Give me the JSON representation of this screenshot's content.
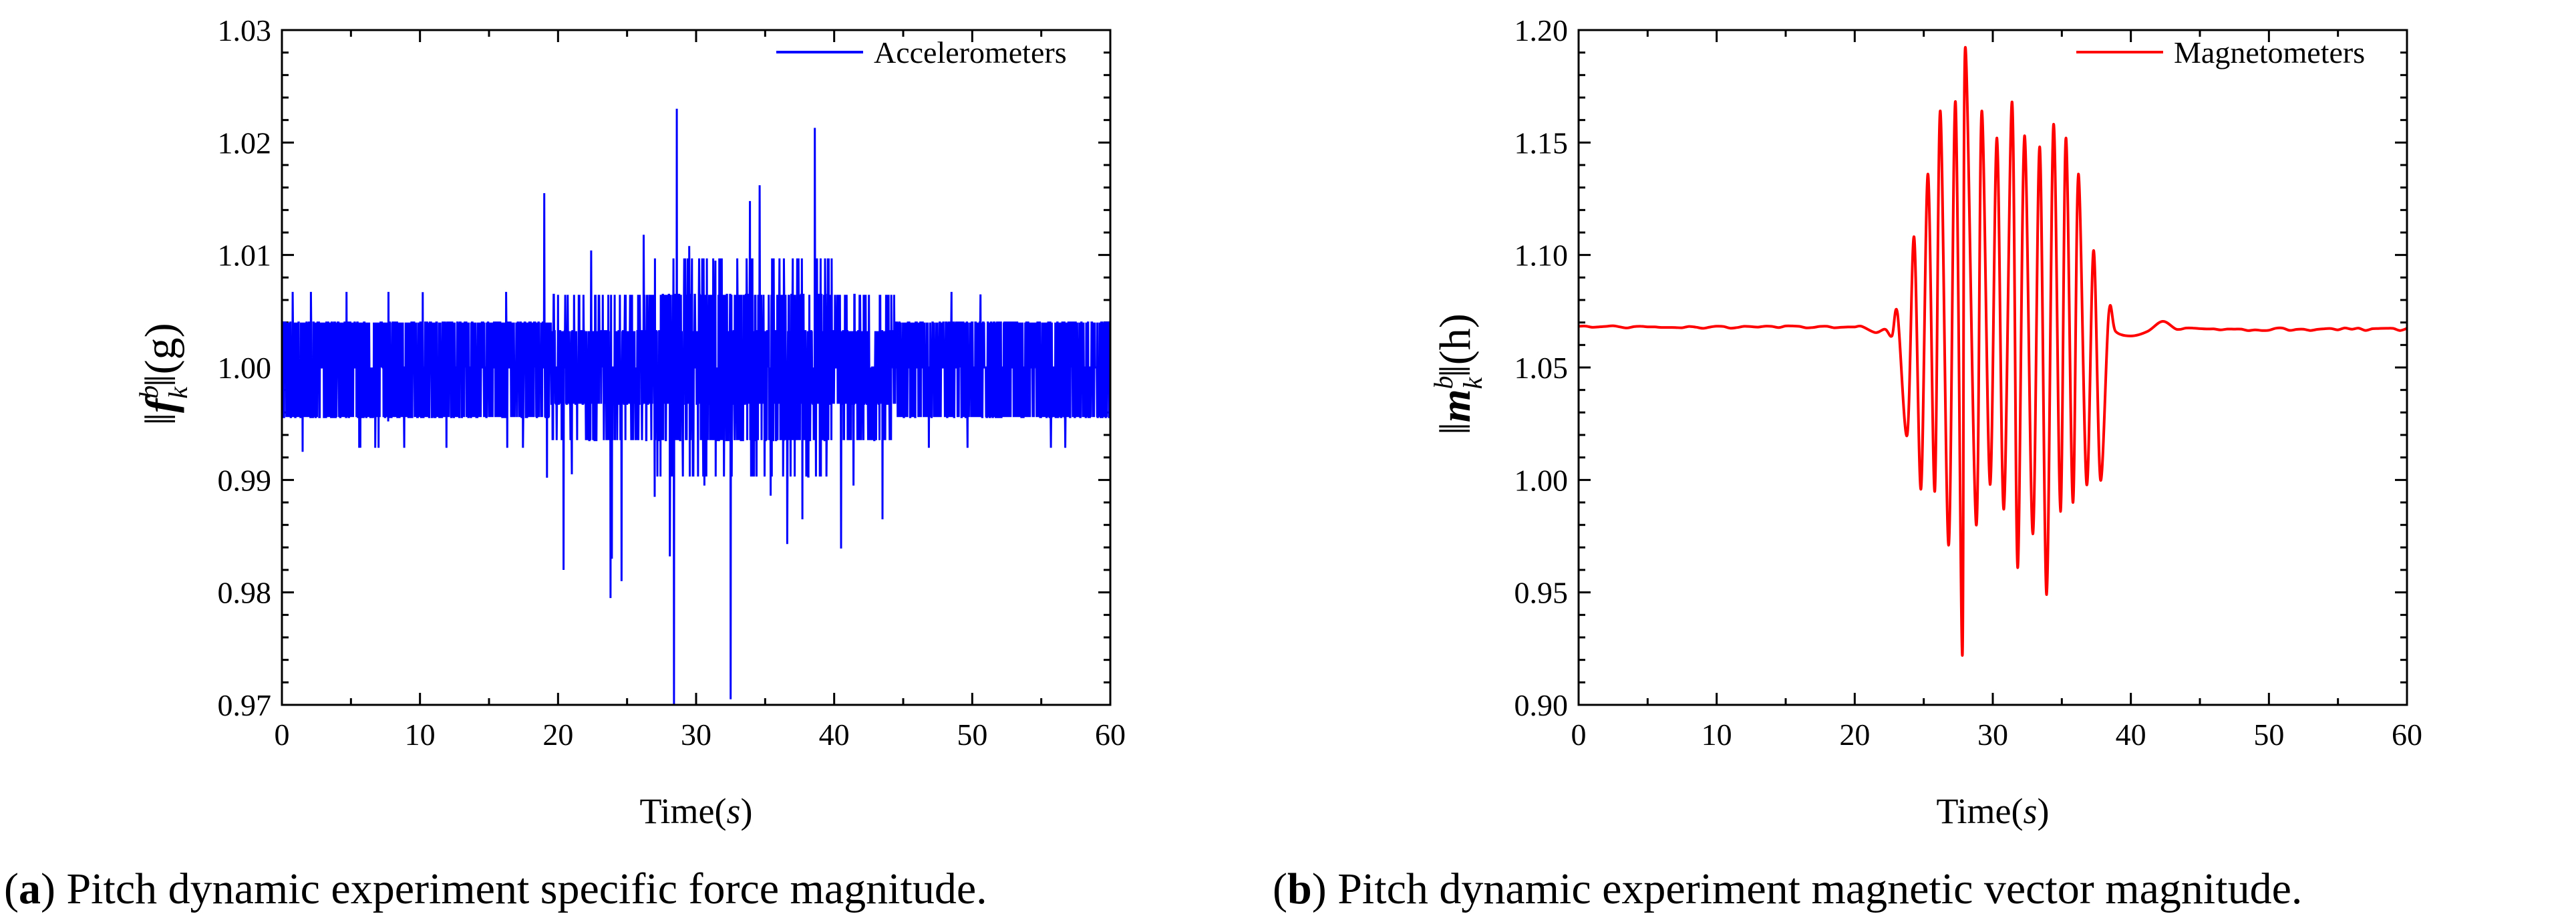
{
  "chart_data": [
    {
      "type": "line",
      "panel": "a",
      "title": "",
      "series": [
        {
          "name": "Accelerometers",
          "color": "#0000ff"
        }
      ],
      "legend": {
        "label": "Accelerometers",
        "position": "top-right"
      },
      "xlabel": "Time(s)",
      "xlabel_prefix": "Time(",
      "xlabel_unit": "s",
      "xlabel_suffix": ")",
      "ylabel": "||f_k^b||(g)",
      "ylabel_parts": {
        "open": "‖",
        "symbol": "f",
        "sub": "k",
        "sup": "b",
        "close": "‖",
        "unit": "(g)"
      },
      "xlim": [
        0,
        60
      ],
      "ylim": [
        0.97,
        1.03
      ],
      "xticks": [
        0,
        10,
        20,
        30,
        40,
        50,
        60
      ],
      "xtick_labels": [
        "0",
        "10",
        "20",
        "30",
        "40",
        "50",
        "60"
      ],
      "yticks": [
        0.97,
        0.98,
        0.99,
        1.0,
        1.01,
        1.02,
        1.03
      ],
      "ytick_labels": [
        "0.97",
        "0.98",
        "0.99",
        "1.00",
        "1.01",
        "1.02",
        "1.03"
      ],
      "notable_points": [
        {
          "t": 28.6,
          "value": 1.023
        },
        {
          "t": 38.6,
          "value": 1.0213
        },
        {
          "t": 28.4,
          "value": 0.97
        },
        {
          "t": 32.5,
          "value": 0.9705
        },
        {
          "t": 19.0,
          "value": 1.0155
        },
        {
          "t": 23.8,
          "value": 0.9795
        }
      ],
      "caption_label": "a",
      "caption_text": "Pitch dynamic experiment specific force magnitude."
    },
    {
      "type": "line",
      "panel": "b",
      "title": "",
      "series": [
        {
          "name": "Magnetometers",
          "color": "#ff0000"
        }
      ],
      "legend": {
        "label": "Magnetometers",
        "position": "top-right"
      },
      "xlabel": "Time(s)",
      "xlabel_prefix": "Time(",
      "xlabel_unit": "s",
      "xlabel_suffix": ")",
      "ylabel": "||m_k^b||(h)",
      "ylabel_parts": {
        "open": "‖",
        "symbol": "m",
        "sub": "k",
        "sup": "b",
        "close": "‖",
        "unit": "(h)"
      },
      "xlim": [
        0,
        60
      ],
      "ylim": [
        0.9,
        1.2
      ],
      "xticks": [
        0,
        10,
        20,
        30,
        40,
        50,
        60
      ],
      "xtick_labels": [
        "0",
        "10",
        "20",
        "30",
        "40",
        "50",
        "60"
      ],
      "yticks": [
        0.9,
        0.95,
        1.0,
        1.05,
        1.1,
        1.15,
        1.2
      ],
      "ytick_labels": [
        "0.90",
        "0.95",
        "1.00",
        "1.05",
        "1.10",
        "1.15",
        "1.20"
      ],
      "baseline": 1.068,
      "oscillation": {
        "t_start": 23.0,
        "t_end": 38.8,
        "peaks": [
          [
            24.3,
            1.108
          ],
          [
            25.3,
            1.136
          ],
          [
            26.2,
            1.164
          ],
          [
            27.3,
            1.168
          ],
          [
            28.0,
            1.192
          ],
          [
            29.2,
            1.164
          ],
          [
            30.3,
            1.152
          ],
          [
            31.4,
            1.168
          ],
          [
            32.3,
            1.153
          ],
          [
            33.4,
            1.148
          ],
          [
            34.4,
            1.158
          ],
          [
            35.3,
            1.152
          ],
          [
            36.2,
            1.136
          ],
          [
            37.3,
            1.102
          ]
        ],
        "troughs": [
          [
            23.8,
            1.02
          ],
          [
            24.8,
            0.996
          ],
          [
            25.8,
            0.995
          ],
          [
            26.8,
            0.971
          ],
          [
            27.8,
            0.922
          ],
          [
            28.8,
            0.98
          ],
          [
            29.8,
            0.998
          ],
          [
            30.8,
            0.987
          ],
          [
            31.8,
            0.961
          ],
          [
            32.9,
            0.976
          ],
          [
            33.9,
            0.949
          ],
          [
            34.9,
            0.986
          ],
          [
            35.8,
            0.99
          ],
          [
            36.8,
            0.998
          ],
          [
            37.8,
            1.0
          ]
        ]
      },
      "caption_label": "b",
      "caption_text": "Pitch dynamic experiment magnetic vector magnitude."
    }
  ]
}
